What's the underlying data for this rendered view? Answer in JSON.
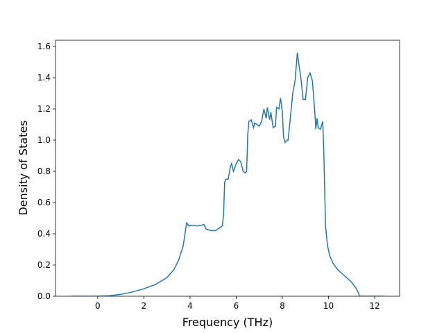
{
  "chart_data": {
    "type": "line",
    "xlabel": "Frequency (THz)",
    "ylabel": "Density of States",
    "color": "#1f77b4",
    "x": [
      -1.15,
      0,
      0.5,
      1,
      1.5,
      2,
      2.5,
      3,
      3.3,
      3.5,
      3.7,
      3.85,
      3.95,
      4.1,
      4.3,
      4.5,
      4.6,
      4.7,
      4.9,
      5.1,
      5.3,
      5.4,
      5.45,
      5.5,
      5.55,
      5.65,
      5.75,
      5.8,
      5.88,
      6.0,
      6.1,
      6.2,
      6.3,
      6.4,
      6.45,
      6.5,
      6.55,
      6.65,
      6.75,
      6.8,
      6.9,
      7.0,
      7.1,
      7.2,
      7.3,
      7.35,
      7.45,
      7.5,
      7.6,
      7.7,
      7.75,
      7.85,
      7.92,
      8.0,
      8.05,
      8.12,
      8.2,
      8.25,
      8.35,
      8.45,
      8.55,
      8.65,
      8.72,
      8.8,
      8.9,
      9.0,
      9.1,
      9.2,
      9.3,
      9.4,
      9.45,
      9.5,
      9.55,
      9.65,
      9.75,
      9.8,
      9.87,
      9.95,
      10.05,
      10.2,
      10.4,
      10.7,
      11.0,
      11.2,
      11.3,
      11.35,
      12.4
    ],
    "values": [
      0,
      0,
      0.003,
      0.012,
      0.027,
      0.048,
      0.075,
      0.12,
      0.17,
      0.23,
      0.32,
      0.47,
      0.45,
      0.455,
      0.45,
      0.455,
      0.46,
      0.43,
      0.42,
      0.42,
      0.44,
      0.45,
      0.52,
      0.73,
      0.75,
      0.75,
      0.83,
      0.85,
      0.8,
      0.85,
      0.875,
      0.86,
      0.8,
      0.79,
      0.8,
      1.03,
      1.12,
      1.13,
      1.08,
      1.11,
      1.1,
      1.09,
      1.12,
      1.2,
      1.14,
      1.21,
      1.13,
      1.18,
      1.08,
      1.09,
      1.21,
      1.2,
      1.27,
      1.18,
      1.02,
      0.985,
      1.0,
      1.0,
      1.15,
      1.3,
      1.38,
      1.56,
      1.48,
      1.4,
      1.26,
      1.26,
      1.4,
      1.43,
      1.38,
      1.19,
      1.07,
      1.14,
      1.08,
      1.07,
      1.12,
      0.9,
      0.45,
      0.33,
      0.26,
      0.21,
      0.17,
      0.13,
      0.09,
      0.05,
      0.02,
      0,
      0
    ],
    "xlim": [
      -1.83,
      13.08
    ],
    "ylim": [
      0,
      1.64
    ],
    "xticks": [
      0,
      2,
      4,
      6,
      8,
      10,
      12
    ],
    "yticks": [
      {
        "value": 0,
        "label": "0.0"
      },
      0.2,
      0.4,
      0.6,
      0.8,
      {
        "value": 1,
        "label": "1.0"
      },
      1.2,
      1.4,
      1.6
    ]
  }
}
